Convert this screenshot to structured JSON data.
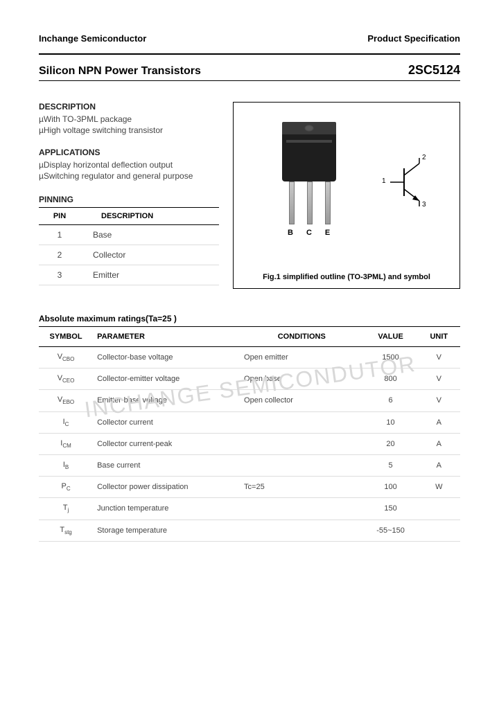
{
  "header": {
    "left": "Inchange Semiconductor",
    "right": "Product Specification"
  },
  "title": {
    "left": "Silicon NPN Power Transistors",
    "right": "2SC5124"
  },
  "description": {
    "heading": "DESCRIPTION",
    "items": [
      "With TO-3PML package",
      "High voltage switching transistor"
    ]
  },
  "applications": {
    "heading": "APPLICATIONS",
    "items": [
      "Display horizontal deflection output",
      "Switching regulator and general purpose"
    ]
  },
  "pinning": {
    "heading": "PINNING",
    "columns": [
      "PIN",
      "DESCRIPTION"
    ],
    "rows": [
      [
        "1",
        "Base"
      ],
      [
        "2",
        "Collector"
      ],
      [
        "3",
        "Emitter"
      ]
    ]
  },
  "figure": {
    "lead_labels": [
      "B",
      "C",
      "E"
    ],
    "symbol_labels": {
      "one": "1",
      "two": "2",
      "three": "3"
    },
    "caption": "Fig.1 simplified outline (TO-3PML) and symbol"
  },
  "ratings": {
    "title": "Absolute maximum ratings(Ta=25  )",
    "columns": [
      "SYMBOL",
      "PARAMETER",
      "CONDITIONS",
      "VALUE",
      "UNIT"
    ],
    "rows": [
      {
        "sym": "V",
        "sub": "CBO",
        "param": "Collector-base voltage",
        "cond": "Open emitter",
        "val": "1500",
        "unit": "V"
      },
      {
        "sym": "V",
        "sub": "CEO",
        "param": "Collector-emitter voltage",
        "cond": "Open base",
        "val": "800",
        "unit": "V"
      },
      {
        "sym": "V",
        "sub": "EBO",
        "param": "Emitter-base voltage",
        "cond": "Open collector",
        "val": "6",
        "unit": "V"
      },
      {
        "sym": "I",
        "sub": "C",
        "param": "Collector current",
        "cond": "",
        "val": "10",
        "unit": "A"
      },
      {
        "sym": "I",
        "sub": "CM",
        "param": "Collector current-peak",
        "cond": "",
        "val": "20",
        "unit": "A"
      },
      {
        "sym": "I",
        "sub": "B",
        "param": "Base current",
        "cond": "",
        "val": "5",
        "unit": "A"
      },
      {
        "sym": "P",
        "sub": "C",
        "param": "Collector power dissipation",
        "cond": "Tc=25  ",
        "val": "100",
        "unit": "W"
      },
      {
        "sym": "T",
        "sub": "j",
        "param": "Junction temperature",
        "cond": "",
        "val": "150",
        "unit": "  "
      },
      {
        "sym": "T",
        "sub": "stg",
        "param": "Storage temperature",
        "cond": "",
        "val": "-55~150",
        "unit": "  "
      }
    ]
  },
  "watermark": "INCHANGE SEMICONDUTOR",
  "colors": {
    "text": "#000000",
    "muted": "#444444",
    "border": "#000000",
    "row_border": "#dddddd",
    "watermark": "#d8d8d8",
    "pkg_dark": "#1e1e1e",
    "pkg_tab": "#3a3a3a",
    "lead": "#9a9a9a"
  }
}
